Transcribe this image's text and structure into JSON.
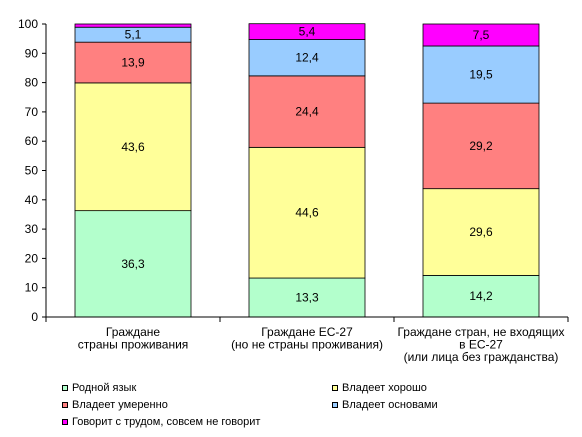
{
  "chart_data": {
    "type": "bar",
    "stacked": true,
    "ylim": [
      0,
      100
    ],
    "yticks": [
      "0",
      "10",
      "20",
      "30",
      "40",
      "50",
      "60",
      "70",
      "80",
      "90",
      "100"
    ],
    "categories": [
      [
        "Граждане",
        "страны проживания"
      ],
      [
        "Граждане ЕС-27",
        "(но не страны проживания)"
      ],
      [
        "Граждане стран, не входящих",
        "в ЕС-27",
        "(или лица без гражданства)"
      ]
    ],
    "series": [
      {
        "name": "Родной язык",
        "color": "#b3ffcc",
        "values": [
          36.3,
          13.3,
          14.2
        ],
        "labels": [
          "36,3",
          "13,3",
          "14,2"
        ]
      },
      {
        "name": "Владеет хорошо",
        "color": "#ffff99",
        "values": [
          43.6,
          44.6,
          29.6
        ],
        "labels": [
          "43,6",
          "44,6",
          "29,6"
        ]
      },
      {
        "name": "Владеет умеренно",
        "color": "#ff8080",
        "values": [
          13.9,
          24.4,
          29.2
        ],
        "labels": [
          "13,9",
          "24,4",
          "29,2"
        ]
      },
      {
        "name": "Владеет основами",
        "color": "#99ccff",
        "values": [
          5.1,
          12.4,
          19.5
        ],
        "labels": [
          "5,1",
          "12,4",
          "19,5"
        ]
      },
      {
        "name": "Говорит с трудом, совсем не говорит",
        "color": "#ff00ff",
        "values": [
          1.1,
          5.4,
          7.5
        ],
        "labels": [
          "",
          "5,4",
          "7,5"
        ]
      }
    ],
    "grid": false,
    "legend_position": "bottom"
  }
}
